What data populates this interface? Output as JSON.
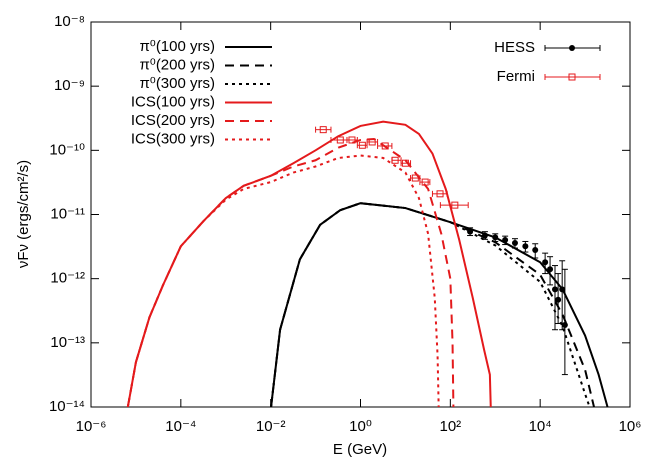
{
  "chart_data": {
    "type": "line",
    "xlabel": "E (GeV)",
    "ylabel": "νFν (ergs/cm²/s)",
    "xscale": "log",
    "yscale": "log",
    "xlim": [
      1e-06,
      1000000.0
    ],
    "ylim": [
      1e-14,
      1e-08
    ],
    "xticks": [
      {
        "value": 1e-06,
        "label": "10⁻⁶"
      },
      {
        "value": 0.0001,
        "label": "10⁻⁴"
      },
      {
        "value": 0.01,
        "label": "10⁻²"
      },
      {
        "value": 1,
        "label": "10⁰"
      },
      {
        "value": 100,
        "label": "10²"
      },
      {
        "value": 10000.0,
        "label": "10⁴"
      },
      {
        "value": 1000000.0,
        "label": "10⁶"
      }
    ],
    "yticks": [
      {
        "value": 1e-14,
        "label": "10⁻¹⁴"
      },
      {
        "value": 1e-13,
        "label": "10⁻¹³"
      },
      {
        "value": 1e-12,
        "label": "10⁻¹²"
      },
      {
        "value": 1e-11,
        "label": "10⁻¹¹"
      },
      {
        "value": 1e-10,
        "label": "10⁻¹⁰"
      },
      {
        "value": 1e-09,
        "label": "10⁻⁹"
      },
      {
        "value": 1e-08,
        "label": "10⁻⁸"
      }
    ],
    "series": [
      {
        "name": "π⁰(100 yrs)",
        "color": "#000000",
        "style": "solid",
        "x": [
          0.0102,
          0.0162,
          0.0447,
          0.126,
          0.355,
          1,
          10,
          100,
          1000,
          10000,
          31600,
          100000,
          200000,
          316000
        ],
        "values": [
          1e-14,
          1.6e-13,
          2e-12,
          6.9e-12,
          1.17e-11,
          1.5e-11,
          1.26e-11,
          7.6e-12,
          4.4e-12,
          1.8e-12,
          6.8e-13,
          1.3e-13,
          3.2e-14,
          1e-14
        ]
      },
      {
        "name": "π⁰(200 yrs)",
        "color": "#000000",
        "style": "dashed",
        "x": [
          0.0102,
          0.0162,
          0.0447,
          0.126,
          0.355,
          1,
          10,
          100,
          1000,
          10000,
          31600,
          100000,
          158000
        ],
        "values": [
          1e-14,
          1.6e-13,
          2e-12,
          6.9e-12,
          1.17e-11,
          1.5e-11,
          1.26e-11,
          7.6e-12,
          3.7e-12,
          1.15e-12,
          2.75e-13,
          3.8e-14,
          1e-14
        ]
      },
      {
        "name": "π⁰(300 yrs)",
        "color": "#000000",
        "style": "dotted",
        "x": [
          0.0102,
          0.0162,
          0.0447,
          0.126,
          0.355,
          1,
          10,
          100,
          1000,
          10000,
          31600,
          100000,
          126000
        ],
        "values": [
          1e-14,
          1.6e-13,
          2e-12,
          6.9e-12,
          1.17e-11,
          1.5e-11,
          1.26e-11,
          7.6e-12,
          3.3e-12,
          8.9e-13,
          1.8e-13,
          1.6e-14,
          1e-14
        ]
      },
      {
        "name": "ICS(100 yrs)",
        "color": "#e41a1c",
        "style": "solid",
        "x": [
          6.6e-06,
          1e-05,
          2e-05,
          4e-05,
          0.0001,
          0.00032,
          0.001,
          0.0025,
          0.01,
          0.032,
          0.1,
          0.32,
          1,
          3.2,
          10,
          20,
          40,
          79,
          158,
          316,
          562,
          759,
          794
        ],
        "values": [
          1e-14,
          5e-14,
          2.5e-13,
          7.9e-13,
          3.2e-12,
          7.9e-12,
          1.8e-11,
          2.8e-11,
          4e-11,
          6.3e-11,
          1e-10,
          1.66e-10,
          2.4e-10,
          2.8e-10,
          2.5e-10,
          1.8e-10,
          8.9e-11,
          2.5e-11,
          4e-12,
          5e-13,
          7.9e-14,
          3.2e-14,
          1e-14
        ]
      },
      {
        "name": "ICS(200 yrs)",
        "color": "#e41a1c",
        "style": "dashed",
        "x": [
          6.6e-06,
          1e-05,
          2e-05,
          4e-05,
          0.0001,
          0.00032,
          0.001,
          0.0025,
          0.01,
          0.032,
          0.1,
          0.32,
          1,
          2,
          10,
          32,
          63,
          100,
          112,
          117
        ],
        "values": [
          1e-14,
          5e-14,
          2.5e-13,
          7.9e-13,
          3.2e-12,
          7.9e-12,
          1.8e-11,
          2.8e-11,
          4e-11,
          5.6e-11,
          7e-11,
          1.1e-10,
          1.45e-10,
          1.5e-10,
          7e-11,
          2.5e-11,
          5e-12,
          1e-12,
          1e-13,
          1e-14
        ]
      },
      {
        "name": "ICS(300 yrs)",
        "color": "#e41a1c",
        "style": "dotted",
        "x": [
          6.6e-06,
          1e-05,
          2e-05,
          4e-05,
          0.0001,
          0.00032,
          0.001,
          0.0025,
          0.01,
          0.032,
          0.1,
          0.32,
          1,
          3.2,
          10,
          20,
          32,
          45,
          52,
          55
        ],
        "values": [
          1e-14,
          5e-14,
          2.5e-13,
          7.9e-13,
          3.2e-12,
          7.9e-12,
          1.7e-11,
          2.5e-11,
          3.2e-11,
          4.5e-11,
          5.6e-11,
          7.6e-11,
          8.3e-11,
          7.6e-11,
          4.5e-11,
          1.8e-11,
          5e-12,
          5e-13,
          6.3e-14,
          1e-14
        ]
      }
    ],
    "points": [
      {
        "name": "HESS",
        "color": "#000000",
        "marker": "circle",
        "x": [
          275,
          589,
          1000,
          1660,
          2750,
          4680,
          7760,
          12900,
          16600,
          21400,
          25100,
          30900,
          35500
        ],
        "values": [
          5.4e-12,
          4.7e-12,
          4.4e-12,
          4e-12,
          3.6e-12,
          3.2e-12,
          2.8e-12,
          1.8e-12,
          1.4e-12,
          6.8e-13,
          4.7e-13,
          6.8e-13,
          1.9e-13
        ],
        "y_low": [
          4.7e-12,
          4.1e-12,
          3.8e-12,
          3.4e-12,
          3e-12,
          2.6e-12,
          2.1e-12,
          1.2e-12,
          8e-13,
          1.6e-13,
          2e-13,
          1.6e-13,
          3.2e-14
        ],
        "y_high": [
          6.2e-12,
          5.4e-12,
          5e-12,
          4.6e-12,
          4.2e-12,
          3.8e-12,
          3.5e-12,
          2.5e-12,
          2.2e-12,
          1.6e-12,
          1.2e-12,
          1.9e-12,
          1.4e-12
        ]
      },
      {
        "name": "Fermi",
        "color": "#e41a1c",
        "marker": "square",
        "x": [
          0.148,
          0.355,
          0.646,
          1.1,
          1.82,
          3.55,
          5.9,
          10,
          16.6,
          27.5,
          59,
          126
        ],
        "values": [
          2.1e-10,
          1.45e-10,
          1.45e-10,
          1.2e-10,
          1.35e-10,
          1.17e-10,
          7e-11,
          6.3e-11,
          3.7e-11,
          3.2e-11,
          2.1e-11,
          1.4e-11
        ],
        "x_low": [
          0.1,
          0.22,
          0.5,
          0.85,
          1.4,
          2.4,
          5,
          8,
          13,
          21,
          40,
          60
        ],
        "x_high": [
          0.22,
          0.5,
          0.85,
          1.4,
          2.4,
          5,
          8,
          13,
          21,
          35,
          85,
          250
        ]
      }
    ]
  }
}
